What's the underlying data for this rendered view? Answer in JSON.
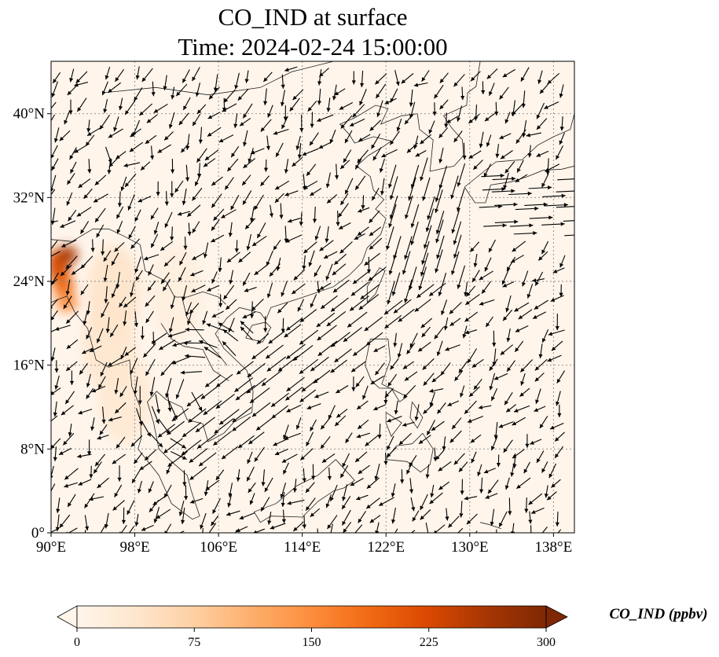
{
  "title": {
    "line1": "CO_IND at surface",
    "line2": "Time: 2024-02-24 15:00:00"
  },
  "map": {
    "extent": {
      "lon_min": 90,
      "lon_max": 140,
      "lat_min": 0,
      "lat_max": 45
    },
    "gridlines": true,
    "x_ticks": [
      {
        "value": 90,
        "label": "90°E"
      },
      {
        "value": 98,
        "label": "98°E"
      },
      {
        "value": 106,
        "label": "106°E"
      },
      {
        "value": 114,
        "label": "114°E"
      },
      {
        "value": 122,
        "label": "122°E"
      },
      {
        "value": 130,
        "label": "130°E"
      },
      {
        "value": 138,
        "label": "138°E"
      }
    ],
    "y_ticks": [
      {
        "value": 0,
        "label": "0°"
      },
      {
        "value": 8,
        "label": "8°N"
      },
      {
        "value": 16,
        "label": "16°N"
      },
      {
        "value": 24,
        "label": "24°N"
      },
      {
        "value": 32,
        "label": "32°N"
      },
      {
        "value": 40,
        "label": "40°N"
      }
    ],
    "background_color": "#fff5eb",
    "hotspots": [
      {
        "lon": 90.5,
        "lat": 26.0,
        "value": 210
      },
      {
        "lon": 91.5,
        "lat": 26.5,
        "value": 260
      },
      {
        "lon": 90.8,
        "lat": 24.8,
        "value": 230
      },
      {
        "lon": 91.2,
        "lat": 23.5,
        "value": 190
      },
      {
        "lon": 91.5,
        "lat": 22.0,
        "value": 150
      },
      {
        "lon": 96.0,
        "lat": 23.0,
        "value": 45
      },
      {
        "lon": 95.5,
        "lat": 18.0,
        "value": 40
      },
      {
        "lon": 97.0,
        "lat": 13.0,
        "value": 35
      },
      {
        "lon": 102.0,
        "lat": 23.0,
        "value": 20
      }
    ],
    "wind": {
      "description_free": true,
      "vortex_center": {
        "lon": 104.5,
        "lat": 14.0
      },
      "jet_band": {
        "from": {
          "lon": 104,
          "lat": 9
        },
        "to": {
          "lon": 126,
          "lat": 26
        }
      }
    }
  },
  "colorbar": {
    "label": "CO_IND (ppbv)",
    "min": 0,
    "max": 300,
    "extend": "both",
    "ticks": [
      {
        "value": 0,
        "label": "0"
      },
      {
        "value": 75,
        "label": "75"
      },
      {
        "value": 150,
        "label": "150"
      },
      {
        "value": 225,
        "label": "225"
      },
      {
        "value": 300,
        "label": "300"
      }
    ],
    "colors": [
      "#fff5eb",
      "#fee6ce",
      "#fdd0a2",
      "#fdae6b",
      "#fd8d3c",
      "#f16913",
      "#d94801",
      "#a63603",
      "#7f2704"
    ]
  }
}
